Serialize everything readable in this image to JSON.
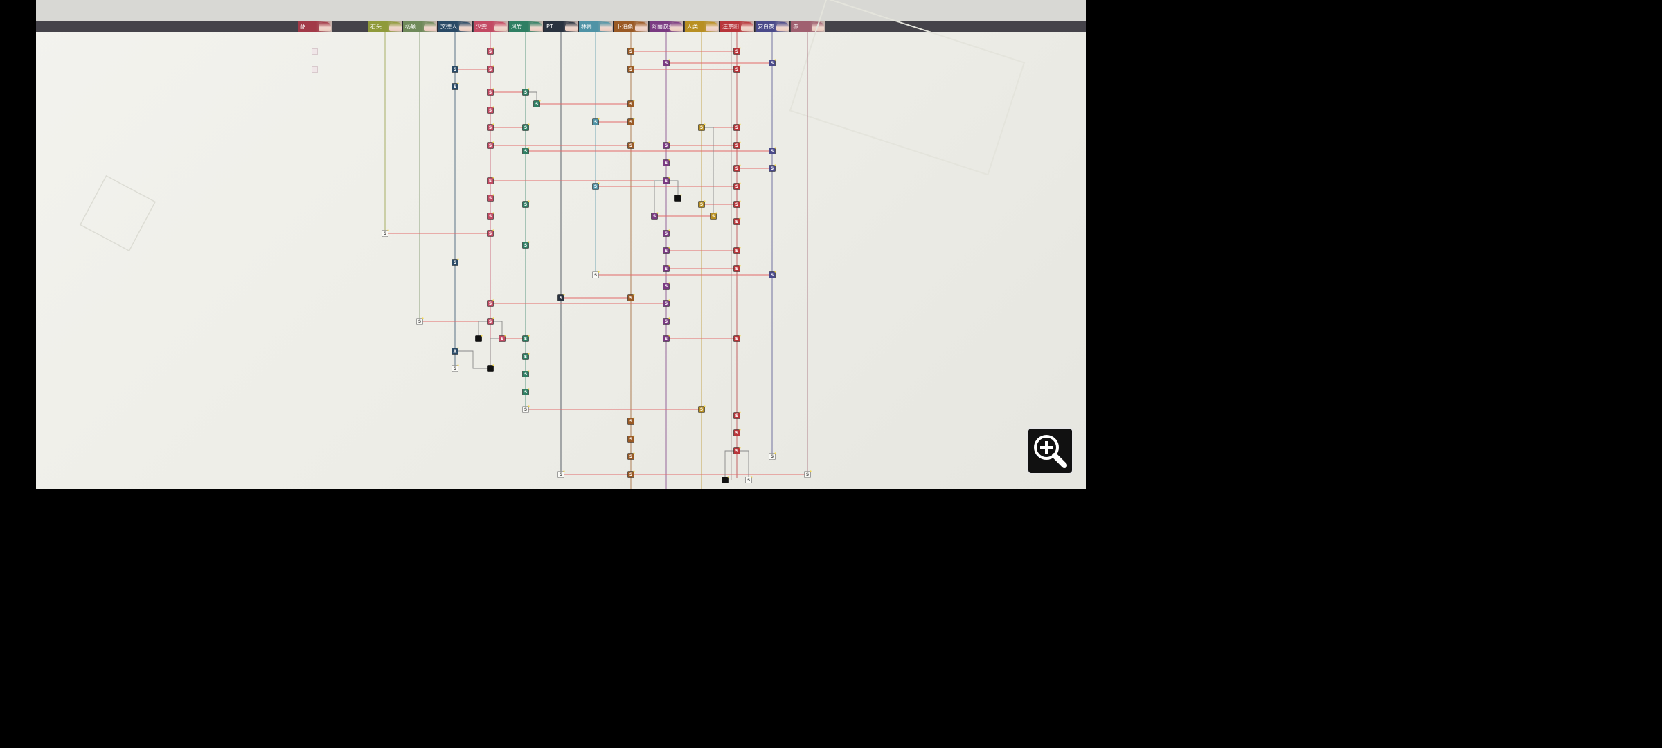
{
  "characters": [
    {
      "name": "薛",
      "color": "#a23a48"
    },
    {
      "name": "石头",
      "color": "#8f9a3a"
    },
    {
      "name": "杨颖",
      "color": "#6f8a5a"
    },
    {
      "name": "文德人",
      "color": "#2a4a66"
    },
    {
      "name": "少雯",
      "color": "#c34a63"
    },
    {
      "name": "风竹",
      "color": "#2f7f63"
    },
    {
      "name": "PT",
      "color": "#2a3340"
    },
    {
      "name": "林尚",
      "color": "#4f93a6"
    },
    {
      "name": "卜泊桑",
      "color": "#9a5a25"
    },
    {
      "name": "阿丽叔业",
      "color": "#7a3a82"
    },
    {
      "name": "人类",
      "color": "#b88f22"
    },
    {
      "name": "汪京阳",
      "color": "#b8353a"
    },
    {
      "name": "安白夜",
      "color": "#4a4a8a"
    },
    {
      "name": "赤",
      "color": "#a06070"
    }
  ],
  "node_label": "S",
  "zoom_button": {
    "icon": "zoom-in-icon"
  },
  "colors": {
    "connector": "#e26a6a",
    "background": "#f0f0ea"
  }
}
